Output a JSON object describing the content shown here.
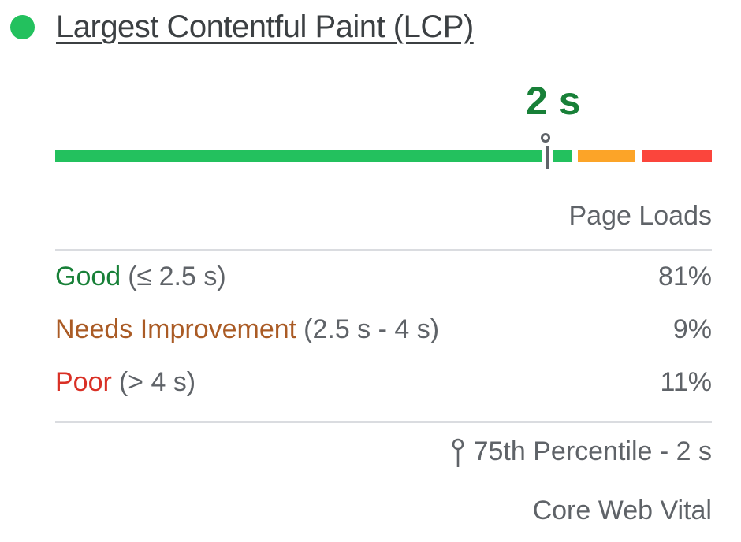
{
  "header": {
    "title": "Largest Contentful Paint (LCP)"
  },
  "distribution_bar": {
    "marker_value": "2 s",
    "marker_position_pct": 75
  },
  "table": {
    "column_header": "Page Loads",
    "rows": [
      {
        "label": "Good",
        "range": "(≤ 2.5 s)",
        "value": "81%"
      },
      {
        "label": "Needs Improvement",
        "range": "(2.5 s - 4 s)",
        "value": "9%"
      },
      {
        "label": "Poor",
        "range": "(> 4 s)",
        "value": "11%"
      }
    ]
  },
  "footer": {
    "percentile_label": "75th Percentile - 2 s",
    "badge_label": "Core Web Vital"
  },
  "colors": {
    "good_bar": "#23c15e",
    "needs_improvement_bar": "#fca428",
    "poor_bar": "#fb453c",
    "good_text": "#188038",
    "needs_improvement_text": "#aa5b25",
    "poor_text": "#d93025",
    "muted_text": "#5f6368",
    "title_text": "#3c4043",
    "divider": "#dadce0",
    "marker": "#5f6368"
  },
  "chart_data": {
    "type": "bar",
    "orientation": "horizontal-stacked",
    "title": "Largest Contentful Paint (LCP)",
    "categories": [
      "Good (≤ 2.5 s)",
      "Needs Improvement (2.5 s - 4 s)",
      "Poor (> 4 s)"
    ],
    "values": [
      81,
      9,
      11
    ],
    "unit": "%",
    "value_column_label": "Page Loads",
    "percentile_marker": {
      "percentile": "75th",
      "value": "2 s",
      "position_pct": 75
    },
    "badge": "Core Web Vital",
    "segment_colors": [
      "#23c15e",
      "#fca428",
      "#fb453c"
    ]
  }
}
